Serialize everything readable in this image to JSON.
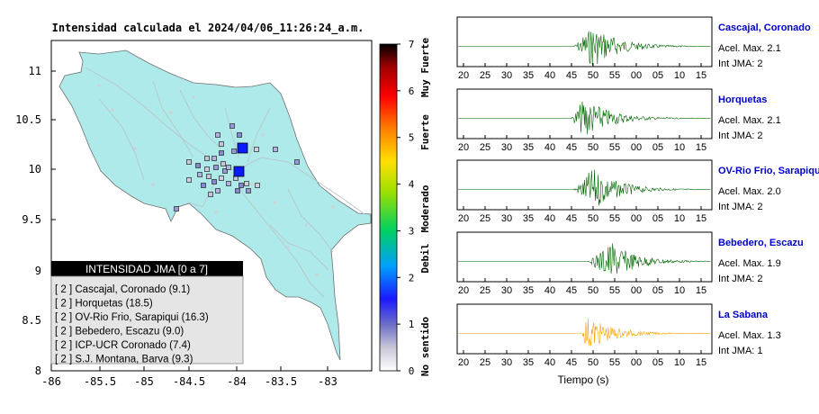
{
  "map": {
    "title": "Intensidad calculada el 2024/04/06_11:26:24_a.m.",
    "x_ticks": [
      "-86",
      "-85.5",
      "-85",
      "-84.5",
      "-84",
      "-83.5",
      "-83"
    ],
    "y_ticks": [
      "11",
      "10.5",
      "10",
      "9.5",
      "9",
      "8.5",
      "8"
    ],
    "colors": {
      "land": "#aeeaea",
      "background": "#ffffff"
    }
  },
  "legend_box": {
    "title": "INTENSIDAD JMA [0 a 7]",
    "items": [
      "[ 2 ]  Cascajal, Coronado (9.1)",
      "[ 2 ]  Horquetas (18.5)",
      "[ 2 ]  OV-Rio Frio, Sarapiqui (16.3)",
      "[ 2 ]  Bebedero, Escazu (9.0)",
      "[ 2 ]  ICP-UCR Coronado (7.4)",
      "[ 2 ]  S.J. Montana, Barva (9.3)"
    ]
  },
  "colorbar": {
    "ticks": [
      "0",
      "1",
      "2",
      "3",
      "4",
      "5",
      "6",
      "7"
    ],
    "labels": [
      "No sentido",
      "Debil",
      "Moderado",
      "Fuerte",
      "Muy Fuerte"
    ]
  },
  "traces": {
    "x_label": "Tiempo (s)",
    "x_ticks": [
      "20",
      "25",
      "30",
      "35",
      "40",
      "45",
      "50",
      "55",
      "00",
      "05",
      "10",
      "15"
    ],
    "stations": [
      {
        "name": "Cascajal, Coronado",
        "acel": "Acel. Max. 2.1",
        "int": "Int JMA: 2",
        "color": "#006400"
      },
      {
        "name": "Horquetas",
        "acel": "Acel. Max. 2.1",
        "int": "Int JMA: 2",
        "color": "#006400"
      },
      {
        "name": "OV-Rio Frio, Sarapiqui",
        "acel": "Acel. Max. 2.0",
        "int": "Int JMA: 2",
        "color": "#006400"
      },
      {
        "name": "Bebedero, Escazu",
        "acel": "Acel. Max. 1.9",
        "int": "Int JMA: 2",
        "color": "#006400"
      },
      {
        "name": "La Sabana",
        "acel": "Acel. Max. 1.3",
        "int": "Int JMA: 1",
        "color": "#f5a300"
      }
    ]
  },
  "chart_data": [
    {
      "type": "scatter",
      "title": "Intensidad calculada el 2024/04/06_11:26:24_a.m.",
      "xlim": [
        -86,
        -82.8
      ],
      "ylim": [
        8,
        11.3
      ],
      "legend": "bottom-left",
      "epicenters": [
        {
          "x": -83.94,
          "y": 10.22
        },
        {
          "x": -84.0,
          "y": 9.98
        }
      ],
      "colorbar": {
        "min": 0,
        "max": 7,
        "ticks": [
          0,
          1,
          2,
          3,
          4,
          5,
          6,
          7
        ]
      }
    },
    {
      "type": "line",
      "x_label": "Tiempo (s)",
      "panels": [
        {
          "station": "Cascajal, Coronado",
          "onset_s": 45.5,
          "peak_s": 50,
          "acel_max": 2.1,
          "int_jma": 2
        },
        {
          "station": "Horquetas",
          "onset_s": 45.0,
          "peak_s": 48,
          "acel_max": 2.1,
          "int_jma": 2
        },
        {
          "station": "OV-Rio Frio, Sarapiqui",
          "onset_s": 45.5,
          "peak_s": 50,
          "acel_max": 2.0,
          "int_jma": 2
        },
        {
          "station": "Bebedero, Escazu",
          "onset_s": 49.0,
          "peak_s": 54,
          "acel_max": 1.9,
          "int_jma": 2
        },
        {
          "station": "La Sabana",
          "onset_s": 47.5,
          "peak_s": 48.5,
          "acel_max": 1.3,
          "int_jma": 1
        }
      ]
    }
  ]
}
